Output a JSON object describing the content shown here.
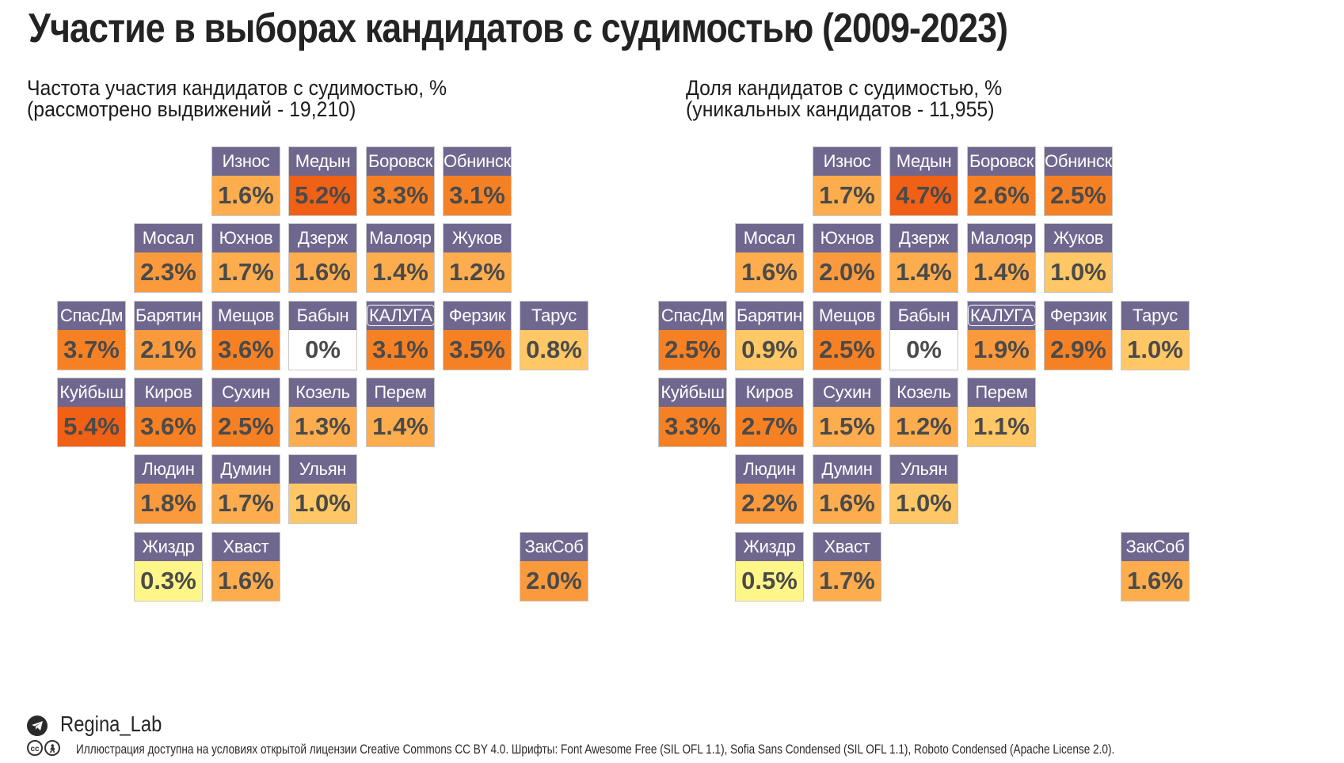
{
  "title": "Участие в выборах  кандидатов с судимостью (2009-2023)",
  "colors": {
    "label_bg": "#70678f",
    "label_text": "#ffffff",
    "value_text": "#4a4a4a",
    "scale": [
      "#ffffff",
      "#fff68a",
      "#ffc766",
      "#fdad4e",
      "#fb9a3d",
      "#f68124",
      "#f06015"
    ]
  },
  "chart_data": [
    {
      "type": "heatmap",
      "title": "Частота участия кандидатов с судимостью, %",
      "subtitle": "(рассмотрено выдвижений - 19,210)",
      "unit": "%",
      "cells": [
        {
          "name": "Износ",
          "value": 1.6,
          "label": "1.6%",
          "row": 0,
          "col": 2
        },
        {
          "name": "Медын",
          "value": 5.2,
          "label": "5.2%",
          "row": 0,
          "col": 3
        },
        {
          "name": "Боровск",
          "value": 3.3,
          "label": "3.3%",
          "row": 0,
          "col": 4
        },
        {
          "name": "Обнинск",
          "value": 3.1,
          "label": "3.1%",
          "row": 0,
          "col": 5
        },
        {
          "name": "Мосал",
          "value": 2.3,
          "label": "2.3%",
          "row": 1,
          "col": 1
        },
        {
          "name": "Юхнов",
          "value": 1.7,
          "label": "1.7%",
          "row": 1,
          "col": 2
        },
        {
          "name": "Дзерж",
          "value": 1.6,
          "label": "1.6%",
          "row": 1,
          "col": 3
        },
        {
          "name": "Малояр",
          "value": 1.4,
          "label": "1.4%",
          "row": 1,
          "col": 4
        },
        {
          "name": "Жуков",
          "value": 1.2,
          "label": "1.2%",
          "row": 1,
          "col": 5
        },
        {
          "name": "СпасДм",
          "value": 3.7,
          "label": "3.7%",
          "row": 2,
          "col": 0
        },
        {
          "name": "Барятин",
          "value": 2.1,
          "label": "2.1%",
          "row": 2,
          "col": 1
        },
        {
          "name": "Мещов",
          "value": 3.6,
          "label": "3.6%",
          "row": 2,
          "col": 2
        },
        {
          "name": "Бабын",
          "value": 0,
          "label": "0%",
          "row": 2,
          "col": 3
        },
        {
          "name": "КАЛУГА",
          "value": 3.1,
          "label": "3.1%",
          "row": 2,
          "col": 4,
          "capital": true
        },
        {
          "name": "Ферзик",
          "value": 3.5,
          "label": "3.5%",
          "row": 2,
          "col": 5
        },
        {
          "name": "Тарус",
          "value": 0.8,
          "label": "0.8%",
          "row": 2,
          "col": 6
        },
        {
          "name": "Куйбыш",
          "value": 5.4,
          "label": "5.4%",
          "row": 3,
          "col": 0
        },
        {
          "name": "Киров",
          "value": 3.6,
          "label": "3.6%",
          "row": 3,
          "col": 1
        },
        {
          "name": "Сухин",
          "value": 2.5,
          "label": "2.5%",
          "row": 3,
          "col": 2
        },
        {
          "name": "Козель",
          "value": 1.3,
          "label": "1.3%",
          "row": 3,
          "col": 3
        },
        {
          "name": "Перем",
          "value": 1.4,
          "label": "1.4%",
          "row": 3,
          "col": 4
        },
        {
          "name": "Людин",
          "value": 1.8,
          "label": "1.8%",
          "row": 4,
          "col": 1
        },
        {
          "name": "Думин",
          "value": 1.7,
          "label": "1.7%",
          "row": 4,
          "col": 2
        },
        {
          "name": "Ульян",
          "value": 1.0,
          "label": "1.0%",
          "row": 4,
          "col": 3
        },
        {
          "name": "Жиздр",
          "value": 0.3,
          "label": "0.3%",
          "row": 5,
          "col": 1
        },
        {
          "name": "Хваст",
          "value": 1.6,
          "label": "1.6%",
          "row": 5,
          "col": 2
        },
        {
          "name": "ЗакСоб",
          "value": 2.0,
          "label": "2.0%",
          "row": 5,
          "col": 6
        }
      ]
    },
    {
      "type": "heatmap",
      "title": "Доля кандидатов с судимостью, %",
      "subtitle": "(уникальных кандидатов - 11,955)",
      "unit": "%",
      "cells": [
        {
          "name": "Износ",
          "value": 1.7,
          "label": "1.7%",
          "row": 0,
          "col": 2
        },
        {
          "name": "Медын",
          "value": 4.7,
          "label": "4.7%",
          "row": 0,
          "col": 3
        },
        {
          "name": "Боровск",
          "value": 2.6,
          "label": "2.6%",
          "row": 0,
          "col": 4
        },
        {
          "name": "Обнинск",
          "value": 2.5,
          "label": "2.5%",
          "row": 0,
          "col": 5
        },
        {
          "name": "Мосал",
          "value": 1.6,
          "label": "1.6%",
          "row": 1,
          "col": 1
        },
        {
          "name": "Юхнов",
          "value": 2.0,
          "label": "2.0%",
          "row": 1,
          "col": 2
        },
        {
          "name": "Дзерж",
          "value": 1.4,
          "label": "1.4%",
          "row": 1,
          "col": 3
        },
        {
          "name": "Малояр",
          "value": 1.4,
          "label": "1.4%",
          "row": 1,
          "col": 4
        },
        {
          "name": "Жуков",
          "value": 1.0,
          "label": "1.0%",
          "row": 1,
          "col": 5
        },
        {
          "name": "СпасДм",
          "value": 2.5,
          "label": "2.5%",
          "row": 2,
          "col": 0
        },
        {
          "name": "Барятин",
          "value": 0.9,
          "label": "0.9%",
          "row": 2,
          "col": 1
        },
        {
          "name": "Мещов",
          "value": 2.5,
          "label": "2.5%",
          "row": 2,
          "col": 2
        },
        {
          "name": "Бабын",
          "value": 0,
          "label": "0%",
          "row": 2,
          "col": 3
        },
        {
          "name": "КАЛУГА",
          "value": 1.9,
          "label": "1.9%",
          "row": 2,
          "col": 4,
          "capital": true
        },
        {
          "name": "Ферзик",
          "value": 2.9,
          "label": "2.9%",
          "row": 2,
          "col": 5
        },
        {
          "name": "Тарус",
          "value": 1.0,
          "label": "1.0%",
          "row": 2,
          "col": 6
        },
        {
          "name": "Куйбыш",
          "value": 3.3,
          "label": "3.3%",
          "row": 3,
          "col": 0
        },
        {
          "name": "Киров",
          "value": 2.7,
          "label": "2.7%",
          "row": 3,
          "col": 1
        },
        {
          "name": "Сухин",
          "value": 1.5,
          "label": "1.5%",
          "row": 3,
          "col": 2
        },
        {
          "name": "Козель",
          "value": 1.2,
          "label": "1.2%",
          "row": 3,
          "col": 3
        },
        {
          "name": "Перем",
          "value": 1.1,
          "label": "1.1%",
          "row": 3,
          "col": 4
        },
        {
          "name": "Людин",
          "value": 2.2,
          "label": "2.2%",
          "row": 4,
          "col": 1
        },
        {
          "name": "Думин",
          "value": 1.6,
          "label": "1.6%",
          "row": 4,
          "col": 2
        },
        {
          "name": "Ульян",
          "value": 1.0,
          "label": "1.0%",
          "row": 4,
          "col": 3
        },
        {
          "name": "Жиздр",
          "value": 0.5,
          "label": "0.5%",
          "row": 5,
          "col": 1
        },
        {
          "name": "Хваст",
          "value": 1.7,
          "label": "1.7%",
          "row": 5,
          "col": 2
        },
        {
          "name": "ЗакСоб",
          "value": 1.6,
          "label": "1.6%",
          "row": 5,
          "col": 6
        }
      ]
    }
  ],
  "footer": {
    "telegram_icon": "telegram-icon",
    "author": "Regina_Lab",
    "cc_icons": [
      "cc",
      "by"
    ],
    "license": "Иллюстрация доступна на условиях открытой лицензии Creative Commons CC BY 4.0. Шрифты: Font Awesome Free (SIL OFL 1.1), Sofia Sans Condensed (SIL OFL 1.1), Roboto Condensed (Apache License 2.0)."
  }
}
